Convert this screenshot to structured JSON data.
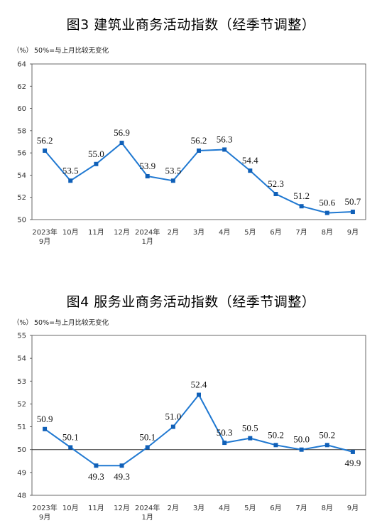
{
  "chart_data": [
    {
      "type": "line",
      "title": "图3  建筑业商务活动指数（经季节调整）",
      "unit": "（%）",
      "note": "50%=与上月比较无变化",
      "categories": [
        [
          "2023年",
          "9月"
        ],
        [
          "10月"
        ],
        [
          "11月"
        ],
        [
          "12月"
        ],
        [
          "2024年",
          "1月"
        ],
        [
          "2月"
        ],
        [
          "3月"
        ],
        [
          "4月"
        ],
        [
          "5月"
        ],
        [
          "6月"
        ],
        [
          "7月"
        ],
        [
          "8月"
        ],
        [
          "9月"
        ]
      ],
      "values": [
        56.2,
        53.5,
        55.0,
        56.9,
        53.9,
        53.5,
        56.2,
        56.3,
        54.4,
        52.3,
        51.2,
        50.6,
        50.7
      ],
      "value_labels": [
        "56.2",
        "53.5",
        "55.0",
        "56.9",
        "53.9",
        "53.5",
        "56.2",
        "56.3",
        "54.4",
        "52.3",
        "51.2",
        "50.6",
        "50.7"
      ],
      "label_position": [
        "above",
        "above",
        "above",
        "above",
        "above",
        "above",
        "above",
        "above",
        "above",
        "above",
        "above",
        "above",
        "above"
      ],
      "ylim": [
        50,
        64
      ],
      "yticks": [
        "50",
        "52",
        "54",
        "56",
        "58",
        "60",
        "62",
        "64"
      ],
      "reference_line": 50,
      "grid": false,
      "line_color": "#1f78d1"
    },
    {
      "type": "line",
      "title": "图4  服务业商务活动指数（经季节调整）",
      "unit": "（%）",
      "note": "50%=与上月比较无变化",
      "categories": [
        [
          "2023年",
          "9月"
        ],
        [
          "10月"
        ],
        [
          "11月"
        ],
        [
          "12月"
        ],
        [
          "2024年",
          "1月"
        ],
        [
          "2月"
        ],
        [
          "3月"
        ],
        [
          "4月"
        ],
        [
          "5月"
        ],
        [
          "6月"
        ],
        [
          "7月"
        ],
        [
          "8月"
        ],
        [
          "9月"
        ]
      ],
      "values": [
        50.9,
        50.1,
        49.3,
        49.3,
        50.1,
        51.0,
        52.4,
        50.3,
        50.5,
        50.2,
        50.0,
        50.2,
        49.9
      ],
      "value_labels": [
        "50.9",
        "50.1",
        "49.3",
        "49.3",
        "50.1",
        "51.0",
        "52.4",
        "50.3",
        "50.5",
        "50.2",
        "50.0",
        "50.2",
        "49.9"
      ],
      "label_position": [
        "above",
        "above",
        "below",
        "below",
        "above",
        "above",
        "above",
        "above",
        "above",
        "above",
        "above",
        "above",
        "below"
      ],
      "ylim": [
        48,
        55
      ],
      "yticks": [
        "48",
        "49",
        "50",
        "51",
        "52",
        "53",
        "54",
        "55"
      ],
      "reference_line": 50,
      "grid": false,
      "line_color": "#1f78d1"
    }
  ]
}
